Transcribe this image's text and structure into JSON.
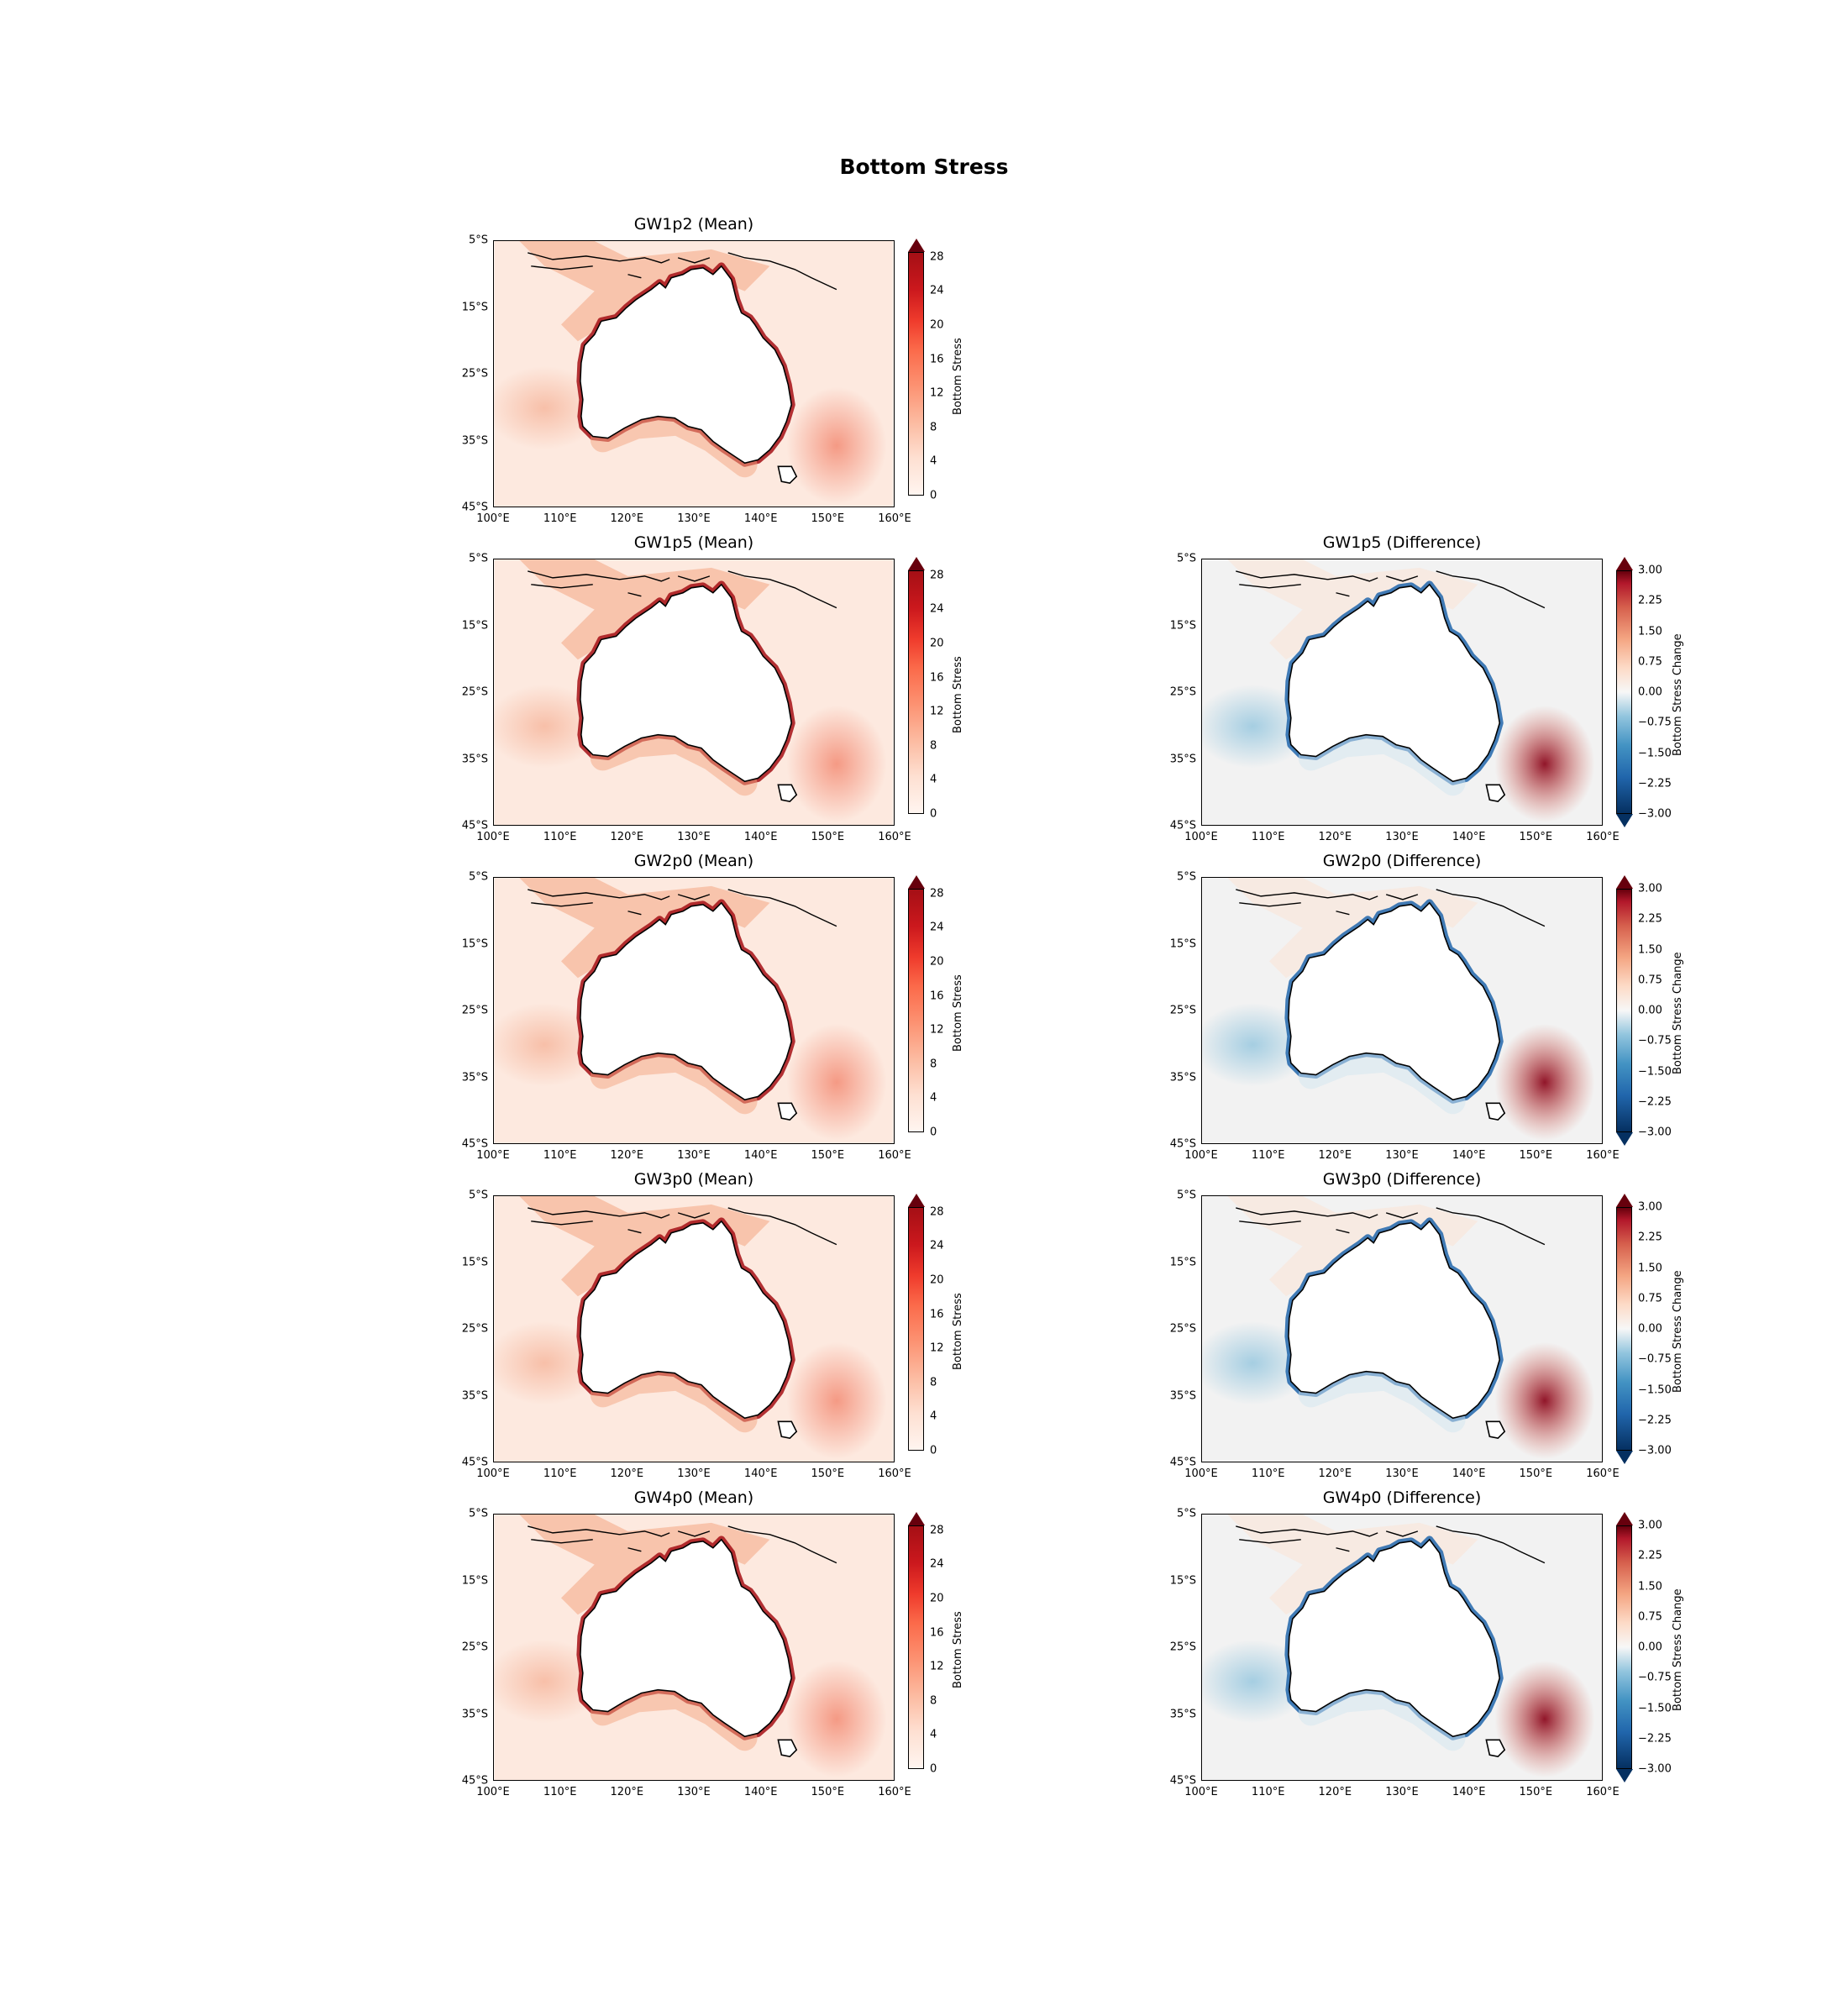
{
  "figure": {
    "title": "Bottom Stress"
  },
  "axes": {
    "lat_ticks": [
      "5°S",
      "15°S",
      "25°S",
      "35°S",
      "45°S"
    ],
    "lon_ticks": [
      "100°E",
      "110°E",
      "120°E",
      "130°E",
      "140°E",
      "150°E",
      "160°E"
    ],
    "lat_range": [
      -45,
      -5
    ],
    "lon_range": [
      100,
      160
    ]
  },
  "colorbars": {
    "mean": {
      "label": "Bottom Stress",
      "ticks": [
        "0",
        "4",
        "8",
        "12",
        "16",
        "20",
        "24",
        "28"
      ],
      "colormap": "Reds",
      "extend": "max"
    },
    "difference": {
      "label": "Bottom Stress Change",
      "ticks": [
        "3.00",
        "2.25",
        "1.50",
        "0.75",
        "0.00",
        "−0.75",
        "−1.50",
        "−2.25",
        "−3.00"
      ],
      "colormap": "RdBu_r",
      "extend": "both"
    }
  },
  "panels": {
    "gw1p2_mean": {
      "title": "GW1p2 (Mean)"
    },
    "gw1p5_mean": {
      "title": "GW1p5 (Mean)"
    },
    "gw1p5_diff": {
      "title": "GW1p5 (Difference)"
    },
    "gw2p0_mean": {
      "title": "GW2p0 (Mean)"
    },
    "gw2p0_diff": {
      "title": "GW2p0 (Difference)"
    },
    "gw3p0_mean": {
      "title": "GW3p0 (Mean)"
    },
    "gw3p0_diff": {
      "title": "GW3p0 (Difference)"
    },
    "gw4p0_mean": {
      "title": "GW4p0 (Mean)"
    },
    "gw4p0_diff": {
      "title": "GW4p0 (Difference)"
    }
  },
  "colors": {
    "mean_background": "#fde9df",
    "mean_high": "#a50f15",
    "diff_background": "#f2f2f2",
    "diff_positive": "#b2182b",
    "diff_negative": "#2166ac",
    "coastline": "#000000"
  }
}
